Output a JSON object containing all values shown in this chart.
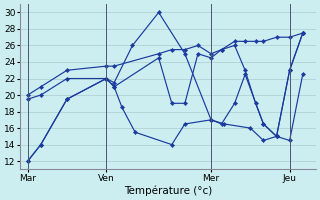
{
  "title": "Température (°c)",
  "bg_color": "#cceef0",
  "line_color": "#1a3a9e",
  "grid_color": "#aacccc",
  "x_tick_labels": [
    "Mar",
    "Ven",
    "Mer",
    "Jeu"
  ],
  "x_tick_positions": [
    0,
    3,
    7,
    10
  ],
  "ylim": [
    11,
    31
  ],
  "yticks": [
    12,
    14,
    16,
    18,
    20,
    22,
    24,
    26,
    28,
    30
  ],
  "series_x": [
    [
      0,
      0.5,
      1.5,
      3.0,
      3.3,
      3.6,
      4.1,
      5.5,
      6.0,
      7.0,
      7.4,
      7.9,
      8.3,
      9.0,
      9.5,
      10.0,
      10.5
    ],
    [
      0,
      0.5,
      1.5,
      3.0,
      3.3,
      5.0,
      5.5,
      6.0,
      6.5,
      7.0,
      7.4,
      7.9,
      8.3,
      8.7,
      9.0,
      9.5,
      10.0,
      10.5
    ],
    [
      0,
      0.5,
      1.5,
      3.0,
      3.3,
      5.0,
      5.5,
      6.0,
      6.5,
      7.0,
      7.4,
      7.9,
      8.3,
      8.7,
      9.0,
      9.5,
      10.0,
      10.5
    ],
    [
      0,
      0.5,
      1.5,
      3.0,
      3.3,
      4.0,
      5.0,
      6.0,
      7.0,
      7.5,
      8.5,
      9.0,
      9.5,
      10.0,
      10.5
    ]
  ],
  "series_y": [
    [
      12,
      14,
      19.5,
      22,
      21,
      18.5,
      15.5,
      14,
      16.5,
      17,
      16.5,
      19,
      22.5,
      16.5,
      15,
      14.5,
      22.5
    ],
    [
      19.5,
      20,
      22,
      22,
      21,
      24.5,
      19,
      19,
      25,
      24.5,
      25.5,
      26,
      23,
      19,
      16.5,
      15,
      23,
      27.5
    ],
    [
      20,
      21,
      23,
      23.5,
      23.5,
      25,
      25.5,
      25.5,
      26,
      25,
      25.5,
      26.5,
      26.5,
      26.5,
      26.5,
      27,
      27,
      27.5
    ],
    [
      12,
      14,
      19.5,
      22,
      21.5,
      26,
      30,
      25,
      17,
      16.5,
      16,
      14.5,
      15,
      23,
      27.5
    ]
  ]
}
